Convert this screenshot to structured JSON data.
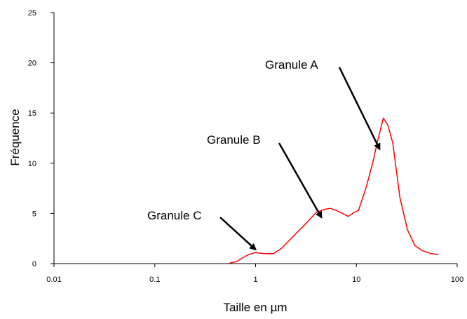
{
  "chart_data": {
    "type": "line",
    "title": "",
    "xlabel": "Taille en µm",
    "ylabel": "Fréquence",
    "x_scale": "log",
    "xlim": [
      0.01,
      100
    ],
    "ylim": [
      0,
      25
    ],
    "x_ticks": [
      "0.01",
      "0.1",
      "1",
      "10",
      "100"
    ],
    "y_ticks": [
      "0",
      "5",
      "10",
      "15",
      "20",
      "25"
    ],
    "grid": false,
    "legend": "none",
    "series": [
      {
        "color": "#ff0000",
        "x": [
          0.55,
          0.65,
          0.75,
          0.85,
          1.0,
          1.2,
          1.5,
          1.8,
          2.2,
          2.7,
          3.3,
          4.0,
          4.8,
          5.5,
          6.3,
          7.3,
          8.3,
          9.5,
          10.5,
          12.5,
          14.5,
          16.5,
          18.5,
          20.5,
          23,
          27,
          32,
          38,
          45,
          55,
          65
        ],
        "y": [
          0.05,
          0.2,
          0.6,
          0.9,
          1.1,
          1.0,
          1.0,
          1.5,
          2.4,
          3.3,
          4.2,
          5.1,
          5.4,
          5.5,
          5.3,
          5.0,
          4.7,
          5.1,
          5.3,
          7.6,
          10.0,
          12.5,
          14.5,
          13.8,
          12.0,
          6.6,
          3.4,
          1.8,
          1.3,
          1.0,
          0.9
        ]
      }
    ],
    "annotations": [
      {
        "text": "Granule A",
        "target_x": 17,
        "target_y": 11.4
      },
      {
        "text": "Granule B",
        "target_x": 4.5,
        "target_y": 4.6
      },
      {
        "text": "Granule C",
        "target_x": 1.0,
        "target_y": 1.4
      }
    ]
  }
}
